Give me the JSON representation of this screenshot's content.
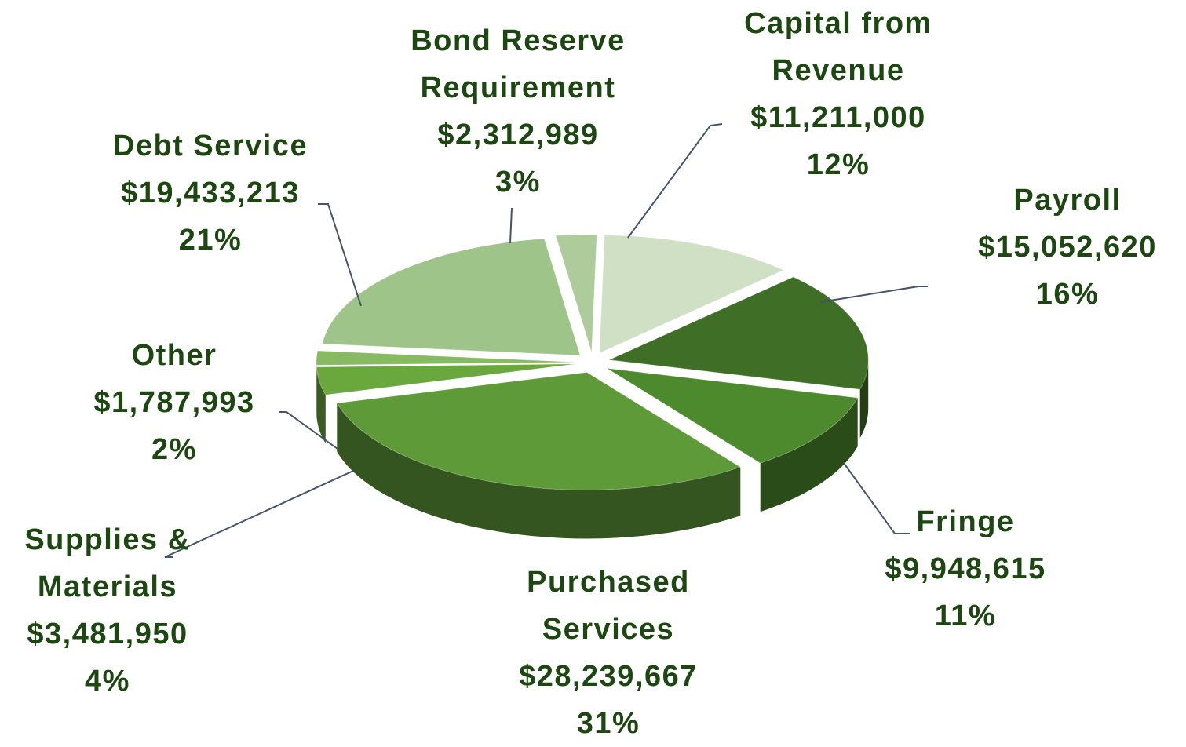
{
  "chart_data": {
    "type": "pie3d",
    "categories": [
      "Capital from Revenue",
      "Payroll",
      "Fringe",
      "Purchased Services",
      "Supplies & Materials",
      "Other",
      "Debt Service",
      "Bond Reserve Requirement"
    ],
    "values": [
      11211000,
      15052620,
      9948615,
      28239667,
      3481950,
      1787993,
      19433213,
      2312989
    ],
    "value_labels": [
      "$11,211,000",
      "$15,052,620",
      "$9,948,615",
      "$28,239,667",
      "$3,481,950",
      "$1,787,993",
      "$19,433,213",
      "$2,312,989"
    ],
    "percents": [
      12,
      16,
      11,
      31,
      4,
      2,
      21,
      3
    ],
    "percent_labels": [
      "12%",
      "16%",
      "11%",
      "31%",
      "4%",
      "2%",
      "21%",
      "3%"
    ],
    "colors": [
      "#cfe0c4",
      "#3f6e26",
      "#4d8a2e",
      "#5e9b38",
      "#6aa83e",
      "#87ba62",
      "#9fc48a",
      "#aecb9c"
    ]
  }
}
